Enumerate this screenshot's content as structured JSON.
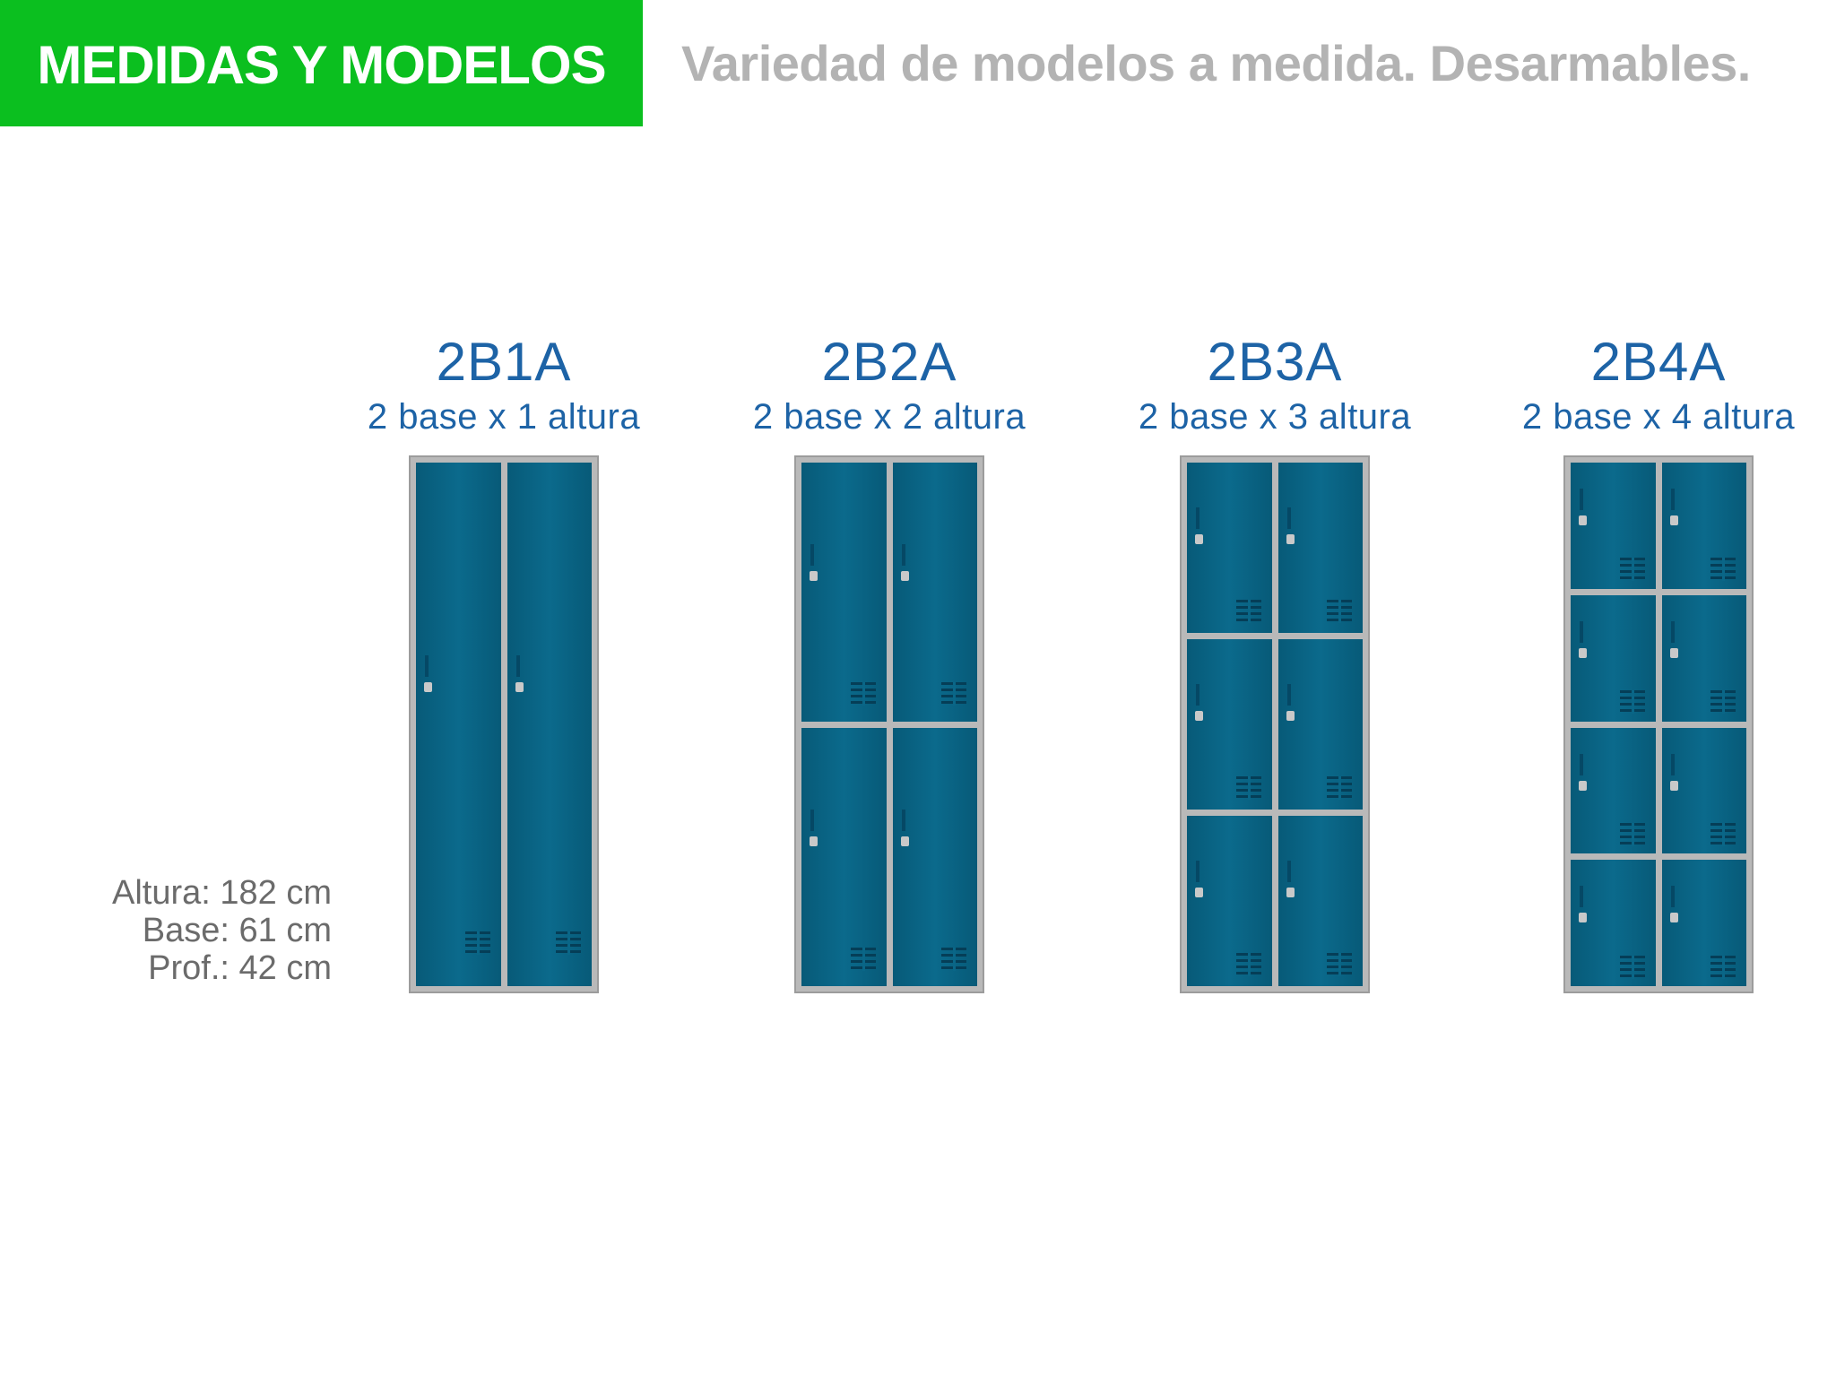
{
  "header": {
    "title": "MEDIDAS Y MODELOS",
    "subtitle": "Variedad de modelos a medida. Desarmables."
  },
  "colors": {
    "accent_green": "#0bbf1f",
    "title_blue": "#1d63a6",
    "door_blue": "#08607f",
    "frame_gray": "#b9b9b9",
    "subtitle_gray": "#b3b3b3"
  },
  "models": [
    {
      "code": "2B1A",
      "description": "2 base x 1 altura",
      "columns": 2,
      "rows": 1
    },
    {
      "code": "2B2A",
      "description": "2 base x 2 altura",
      "columns": 2,
      "rows": 2
    },
    {
      "code": "2B3A",
      "description": "2 base x 3 altura",
      "columns": 2,
      "rows": 3
    },
    {
      "code": "2B4A",
      "description": "2 base x 4 altura",
      "columns": 2,
      "rows": 4
    }
  ],
  "specs": {
    "height": "Altura: 182 cm",
    "base": "Base: 61 cm",
    "depth": "Prof.: 42 cm"
  }
}
